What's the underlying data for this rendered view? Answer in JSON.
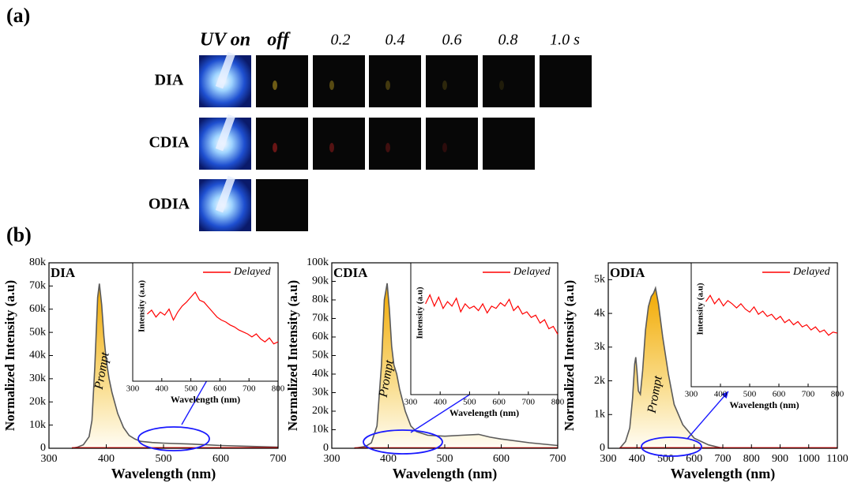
{
  "panel_a": {
    "label": "(a)",
    "columns": [
      "UV on",
      "off",
      "0.2",
      "0.4",
      "0.6",
      "0.8",
      "1.0 s"
    ],
    "rows": [
      "DIA",
      "CDIA",
      "ODIA"
    ]
  },
  "panel_b": {
    "label": "(b)"
  },
  "chart_data": [
    {
      "type": "area",
      "panel_title": "DIA",
      "xlabel": "Wavelength (nm)",
      "ylabel": "Normalized Intensity (a.u)",
      "annotation": "Prompt",
      "xlim": [
        300,
        700
      ],
      "xticks": [
        300,
        400,
        500,
        600,
        700
      ],
      "ylim": [
        0,
        80000
      ],
      "yticks": [
        0,
        {
          "value": 10000,
          "label": "10k"
        },
        {
          "value": 20000,
          "label": "20k"
        },
        {
          "value": 30000,
          "label": "30k"
        },
        {
          "value": 40000,
          "label": "40k"
        },
        {
          "value": 50000,
          "label": "50k"
        },
        {
          "value": 60000,
          "label": "60k"
        },
        {
          "value": 70000,
          "label": "70k"
        },
        {
          "value": 80000,
          "label": "80k"
        }
      ],
      "prompt": {
        "color": "#5a5a5a",
        "x": [
          340,
          350,
          360,
          370,
          375,
          380,
          385,
          388,
          392,
          396,
          400,
          405,
          410,
          420,
          430,
          440,
          450,
          460,
          480,
          500,
          550,
          600,
          650,
          700
        ],
        "values": [
          0,
          500,
          1500,
          5000,
          12000,
          35000,
          65000,
          71000,
          62000,
          48000,
          38000,
          30000,
          24000,
          15000,
          9000,
          5500,
          4000,
          3000,
          2500,
          2200,
          1800,
          1200,
          800,
          500
        ]
      },
      "delayed": {
        "color": "#ff0000",
        "x": [
          340,
          700
        ],
        "values": [
          200,
          200
        ]
      },
      "inset": {
        "type": "line",
        "xlabel": "Wavelength (nm)",
        "ylabel": "Intensity (a.u)",
        "xlim": [
          300,
          800
        ],
        "xticks": [
          300,
          400,
          500,
          600,
          700,
          800
        ],
        "ylim": [
          0,
          1
        ],
        "series": [
          {
            "name": "Delayed",
            "color": "#ff0000",
            "x": [
              350,
              365,
              380,
              395,
              410,
              425,
              440,
              455,
              470,
              485,
              500,
              515,
              530,
              545,
              560,
              575,
              590,
              605,
              620,
              635,
              650,
              665,
              680,
              695,
              710,
              725,
              740,
              755,
              770,
              785,
              800
            ],
            "values": [
              0.58,
              0.62,
              0.55,
              0.6,
              0.57,
              0.63,
              0.52,
              0.6,
              0.66,
              0.7,
              0.75,
              0.8,
              0.72,
              0.7,
              0.65,
              0.6,
              0.55,
              0.52,
              0.5,
              0.47,
              0.45,
              0.42,
              0.4,
              0.38,
              0.35,
              0.38,
              0.33,
              0.3,
              0.34,
              0.28,
              0.3
            ]
          }
        ]
      }
    },
    {
      "type": "area",
      "panel_title": "CDIA",
      "xlabel": "Wavelength (nm)",
      "ylabel": "Normalized Intensity (a.u)",
      "annotation": "Prompt",
      "xlim": [
        300,
        700
      ],
      "xticks": [
        300,
        400,
        500,
        600,
        700
      ],
      "ylim": [
        0,
        100000
      ],
      "yticks": [
        0,
        {
          "value": 10000,
          "label": "10k"
        },
        {
          "value": 20000,
          "label": "20k"
        },
        {
          "value": 30000,
          "label": "30k"
        },
        {
          "value": 40000,
          "label": "40k"
        },
        {
          "value": 50000,
          "label": "50k"
        },
        {
          "value": 60000,
          "label": "60k"
        },
        {
          "value": 70000,
          "label": "70k"
        },
        {
          "value": 80000,
          "label": "80k"
        },
        {
          "value": 90000,
          "label": "90k"
        },
        {
          "value": 100000,
          "label": "100k"
        }
      ],
      "prompt": {
        "color": "#5a5a5a",
        "x": [
          340,
          360,
          370,
          380,
          388,
          393,
          398,
          402,
          406,
          410,
          415,
          420,
          430,
          440,
          450,
          470,
          500,
          530,
          560,
          580,
          600,
          650,
          700
        ],
        "values": [
          0,
          1000,
          3000,
          12000,
          45000,
          80000,
          89000,
          75000,
          55000,
          45000,
          40000,
          32000,
          20000,
          12000,
          9000,
          7000,
          6500,
          7000,
          7500,
          6000,
          5000,
          3000,
          1500
        ]
      },
      "delayed": {
        "color": "#ff0000",
        "x": [
          340,
          700
        ],
        "values": [
          200,
          200
        ]
      },
      "inset": {
        "type": "line",
        "xlabel": "Wavelength (nm)",
        "ylabel": "Intensity (a.u)",
        "xlim": [
          300,
          800
        ],
        "xticks": [
          300,
          400,
          500,
          600,
          700,
          800
        ],
        "ylim": [
          0,
          1
        ],
        "series": [
          {
            "name": "Delayed",
            "color": "#ff0000",
            "x": [
              350,
              365,
              380,
              395,
              410,
              425,
              440,
              455,
              470,
              485,
              500,
              515,
              530,
              545,
              560,
              575,
              590,
              605,
              620,
              635,
              650,
              665,
              680,
              695,
              710,
              725,
              740,
              755,
              770,
              785,
              800
            ],
            "values": [
              0.72,
              0.8,
              0.7,
              0.78,
              0.68,
              0.74,
              0.7,
              0.77,
              0.65,
              0.72,
              0.68,
              0.7,
              0.66,
              0.72,
              0.64,
              0.7,
              0.68,
              0.73,
              0.7,
              0.76,
              0.66,
              0.7,
              0.63,
              0.65,
              0.6,
              0.62,
              0.55,
              0.58,
              0.5,
              0.52,
              0.45
            ]
          }
        ]
      }
    },
    {
      "type": "area",
      "panel_title": "ODIA",
      "xlabel": "Wavelength (nm)",
      "ylabel": "Normalized Intensity (a.u)",
      "annotation": "Prompt",
      "xlim": [
        300,
        1100
      ],
      "xticks": [
        300,
        400,
        500,
        600,
        700,
        800,
        900,
        1000,
        1100
      ],
      "ylim": [
        0,
        5500
      ],
      "yticks": [
        0,
        {
          "value": 1000,
          "label": "1k"
        },
        {
          "value": 2000,
          "label": "2k"
        },
        {
          "value": 3000,
          "label": "3k"
        },
        {
          "value": 4000,
          "label": "4k"
        },
        {
          "value": 5000,
          "label": "5k"
        }
      ],
      "prompt": {
        "color": "#5a5a5a",
        "x": [
          340,
          360,
          375,
          385,
          392,
          396,
          400,
          405,
          412,
          420,
          430,
          440,
          450,
          458,
          465,
          475,
          490,
          510,
          530,
          560,
          600,
          650,
          700
        ],
        "values": [
          0,
          200,
          600,
          1500,
          2500,
          2700,
          2300,
          1700,
          1600,
          2300,
          3500,
          4200,
          4500,
          4600,
          4750,
          4300,
          3300,
          2200,
          1300,
          700,
          300,
          100,
          0
        ]
      },
      "delayed": {
        "color": "#ff0000",
        "x": [
          340,
          1100
        ],
        "values": [
          15,
          15
        ]
      },
      "inset": {
        "type": "line",
        "xlabel": "Wavelength (nm)",
        "ylabel": "Intensity (a.u)",
        "xlim": [
          300,
          800
        ],
        "xticks": [
          300,
          400,
          500,
          600,
          700,
          800
        ],
        "ylim": [
          0,
          1
        ],
        "series": [
          {
            "name": "Delayed",
            "color": "#ff0000",
            "x": [
              350,
              365,
              380,
              395,
              410,
              425,
              440,
              455,
              470,
              485,
              500,
              515,
              530,
              545,
              560,
              575,
              590,
              605,
              620,
              635,
              650,
              665,
              680,
              695,
              710,
              725,
              740,
              755,
              770,
              785,
              800
            ],
            "values": [
              0.72,
              0.78,
              0.7,
              0.75,
              0.68,
              0.73,
              0.7,
              0.66,
              0.7,
              0.65,
              0.62,
              0.67,
              0.6,
              0.63,
              0.58,
              0.6,
              0.55,
              0.58,
              0.52,
              0.55,
              0.5,
              0.53,
              0.48,
              0.5,
              0.45,
              0.48,
              0.43,
              0.45,
              0.4,
              0.43,
              0.42
            ]
          }
        ]
      }
    }
  ]
}
